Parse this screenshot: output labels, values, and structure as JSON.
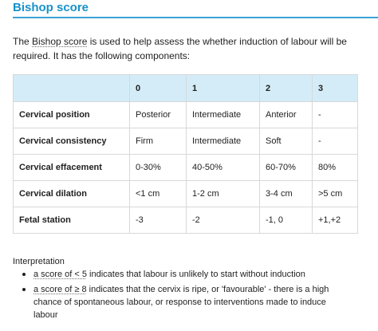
{
  "section": {
    "title": "Bishop score"
  },
  "intro": {
    "before_link": "The ",
    "link_text": "Bishop score",
    "after_link": " is used to help assess the whether induction of labour will be required. It has the following components:"
  },
  "table": {
    "headers": [
      "",
      "0",
      "1",
      "2",
      "3"
    ],
    "rows": [
      [
        "Cervical position",
        "Posterior",
        "Intermediate",
        "Anterior",
        "-"
      ],
      [
        "Cervical consistency",
        "Firm",
        "Intermediate",
        "Soft",
        "-"
      ],
      [
        "Cervical effacement",
        "0-30%",
        "40-50%",
        "60-70%",
        "80%"
      ],
      [
        "Cervical dilation",
        "<1 cm",
        "1-2 cm",
        "3-4 cm",
        ">5 cm"
      ],
      [
        "Fetal station",
        "-3",
        "-2",
        "-1, 0",
        "+1,+2"
      ]
    ]
  },
  "interpretation": {
    "title": "Interpretation",
    "items": [
      {
        "link_text": "a score of < 5",
        "rest": " indicates that labour is unlikely to start without induction"
      },
      {
        "link_text": "a score of ≥ 8",
        "rest": " indicates that the cervix is ripe, or 'favourable' - there is a high chance of spontaneous labour, or response to interventions made to induce labour"
      }
    ]
  },
  "colors": {
    "title": "#1791c9",
    "rule": "#3aa5d8",
    "header_bg": "#d3ecf8",
    "border": "#d8d8d8",
    "text": "#1f1f1f"
  }
}
